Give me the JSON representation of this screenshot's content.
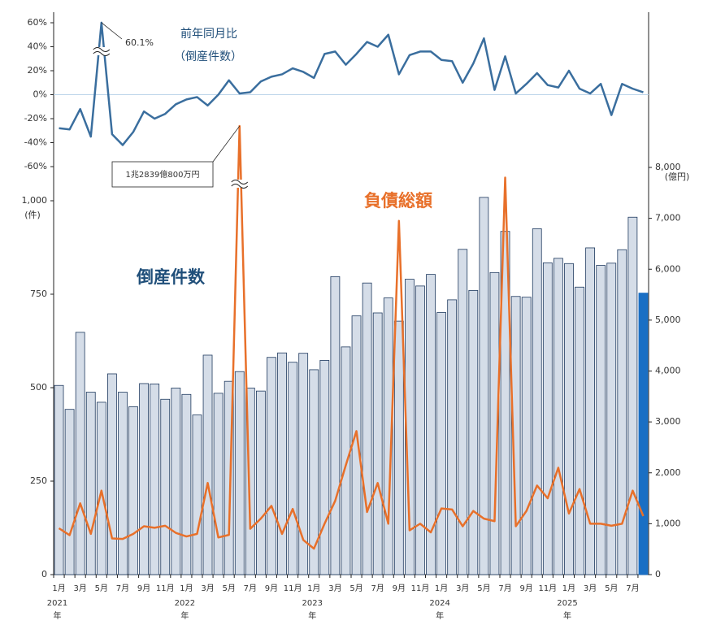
{
  "chart_data": {
    "type": "bar-line",
    "yoy_title": "前年同月比",
    "yoy_subtitle": "（倒産件数）",
    "bar_label": "倒産件数",
    "line_label": "負債総額",
    "y_unit": "(件)",
    "y2_unit": "(億円)",
    "categories": [
      "1月",
      null,
      "3月",
      null,
      "5月",
      null,
      "7月",
      null,
      "9月",
      null,
      "11月",
      null,
      "1月",
      null,
      "3月",
      null,
      "5月",
      null,
      "7月",
      null,
      "9月",
      null,
      "11月",
      null,
      "1月",
      null,
      "3月",
      null,
      "5月",
      null,
      "7月",
      null,
      "9月",
      null,
      "11月",
      null,
      "1月",
      null,
      "3月",
      null,
      "5月",
      null,
      "7月",
      null,
      "9月",
      null,
      "11月",
      null,
      "1月",
      null,
      "3月",
      null,
      "5月",
      null,
      "7月",
      null
    ],
    "year_labels": [
      "2021",
      "2022",
      "2023",
      "2024",
      "2025"
    ],
    "year_suffix": "年",
    "ylim": [
      0,
      1000
    ],
    "yticks": [
      0,
      250,
      500,
      750,
      {
        "value": 1000,
        "label": "1,000"
      }
    ],
    "y2lim": [
      0,
      8000
    ],
    "y2ticks": [
      0,
      {
        "value": 1000,
        "label": "1,000"
      },
      {
        "value": 2000,
        "label": "2,000"
      },
      {
        "value": 3000,
        "label": "3,000"
      },
      {
        "value": 4000,
        "label": "4,000"
      },
      {
        "value": 5000,
        "label": "5,000"
      },
      {
        "value": 6000,
        "label": "6,000"
      },
      {
        "value": 7000,
        "label": "7,000"
      },
      {
        "value": 8000,
        "label": "8,000"
      }
    ],
    "y3lim": [
      -75,
      65
    ],
    "y3ticks": [
      {
        "value": -60,
        "label": "-60%"
      },
      {
        "value": -40,
        "label": "-40%"
      },
      {
        "value": -20,
        "label": "-20%"
      },
      {
        "value": 0,
        "label": "0%"
      },
      {
        "value": 20,
        "label": "20%"
      },
      {
        "value": 40,
        "label": "40%"
      },
      {
        "value": 60,
        "label": "60%"
      }
    ],
    "series": [
      {
        "name": "倒産件数",
        "color": "#d5dde8",
        "edge_color": "#1f3a5f",
        "latest_color": "#1a6fc4",
        "values": [
          506,
          442,
          648,
          488,
          461,
          537,
          488,
          449,
          511,
          510,
          469,
          499,
          482,
          427,
          587,
          485,
          517,
          543,
          499,
          491,
          581,
          593,
          568,
          592,
          548,
          573,
          797,
          609,
          692,
          780,
          700,
          740,
          678,
          790,
          772,
          803,
          701,
          735,
          870,
          760,
          1009,
          808,
          918,
          744,
          742,
          925,
          834,
          846,
          832,
          769,
          874,
          827,
          833,
          869,
          956,
          753
        ]
      },
      {
        "name": "負債総額",
        "color": "#e8702a",
        "axis": "y2",
        "values": [
          910,
          775,
          1400,
          800,
          1650,
          710,
          700,
          800,
          950,
          920,
          960,
          820,
          750,
          800,
          1800,
          730,
          780,
          12839.08,
          900,
          1100,
          1350,
          800,
          1290,
          680,
          510,
          1000,
          1450,
          2150,
          2820,
          1230,
          1800,
          1000,
          6950,
          870,
          1000,
          830,
          1300,
          1280,
          950,
          1250,
          1100,
          1050,
          7800,
          950,
          1250,
          1750,
          1500,
          2100,
          1200,
          1680,
          1000,
          1000,
          960,
          1000,
          1650,
          1150
        ],
        "value_labels": [
          null,
          null,
          null,
          null,
          null,
          null,
          null,
          null,
          null,
          null,
          null,
          null,
          null,
          null,
          null,
          null,
          null,
          "1兆2839億800万円",
          null,
          null,
          null,
          null,
          null,
          null,
          null,
          null,
          null,
          null,
          null,
          null,
          null,
          null,
          null,
          null,
          null,
          null,
          null,
          null,
          null,
          null,
          null,
          null,
          null,
          null,
          null,
          null,
          null,
          null,
          null,
          null,
          null,
          null,
          null,
          null,
          null,
          null
        ]
      },
      {
        "name": "前年同月比",
        "color": "#3a6e9e",
        "axis": "y3",
        "values": [
          -28,
          -29,
          -12,
          -35,
          60.1,
          -33,
          -42,
          -31,
          -14,
          -20,
          -16,
          -8,
          -4,
          -2,
          -9,
          0,
          12,
          1,
          2,
          11,
          15,
          17,
          22,
          19,
          14,
          34,
          36,
          25,
          34,
          44,
          40,
          50,
          17,
          33,
          36,
          36,
          29,
          28,
          10,
          26,
          47,
          4,
          32,
          1,
          9,
          18,
          8,
          6,
          20,
          5,
          1,
          9,
          -17,
          9,
          5,
          2
        ],
        "value_labels": [
          null,
          null,
          null,
          null,
          "60.1%",
          null,
          null,
          null,
          null,
          null,
          null,
          null,
          null,
          null,
          null,
          null,
          null,
          null,
          null,
          null,
          null,
          null,
          null,
          null,
          null,
          null,
          null,
          null,
          null,
          null,
          null,
          null,
          null,
          null,
          null,
          null,
          null,
          null,
          null,
          null,
          null,
          null,
          null,
          null,
          null,
          null,
          null,
          null,
          null,
          null,
          null,
          null,
          null,
          null,
          null,
          null
        ]
      }
    ]
  }
}
